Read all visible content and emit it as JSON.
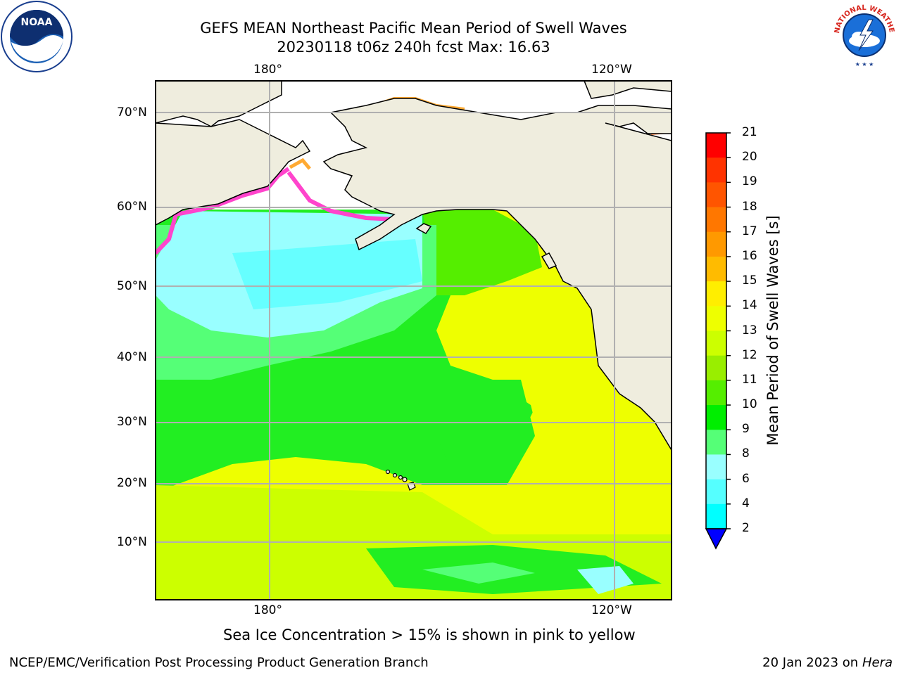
{
  "title": {
    "line1": "GEFS MEAN Northeast Pacific Mean Period of Swell Waves",
    "line2": "20230118 t06z 240h fcst   Max: 16.63"
  },
  "map": {
    "lon_labels_top": [
      "180°",
      "120°W"
    ],
    "lon_labels_bottom": [
      "180°",
      "120°W"
    ],
    "lat_labels": [
      "70°N",
      "60°N",
      "50°N",
      "40°N",
      "30°N",
      "20°N",
      "10°N"
    ],
    "land_color": "#efedde",
    "ocean_colors": {
      "cyan": "#66ffff",
      "light_green": "#55ff77",
      "green": "#22ee22",
      "lime": "#99ee00",
      "yellow": "#eeff00"
    }
  },
  "colorbar": {
    "label": "Mean Period of Swell Waves [s]",
    "ticks": [
      "21",
      "20",
      "19",
      "18",
      "17",
      "16",
      "15",
      "14",
      "13",
      "12",
      "11",
      "10",
      "9",
      "8",
      "6",
      "4",
      "2"
    ],
    "colors": [
      "#ff0000",
      "#ff3300",
      "#ff5500",
      "#ff7700",
      "#ff9900",
      "#ffbb00",
      "#ffee00",
      "#eeff00",
      "#ccff00",
      "#99ee00",
      "#55ee00",
      "#00ee00",
      "#55ff77",
      "#99ffff",
      "#55ffff",
      "#00ffff",
      "#00ccff",
      "#0077ff"
    ],
    "extend_color": "#0000ff"
  },
  "logos": {
    "noaa": {
      "label": "NOAA"
    },
    "nws": {
      "label": "NATIONAL WEATHER SERVICE"
    }
  },
  "caption": "Sea Ice Concentration > 15% is shown in pink to yellow",
  "footer": {
    "left": "NCEP/EMC/Verification Post Processing Product Generation Branch",
    "right_prefix": "20 Jan 2023 on ",
    "right_host": "Hera"
  }
}
